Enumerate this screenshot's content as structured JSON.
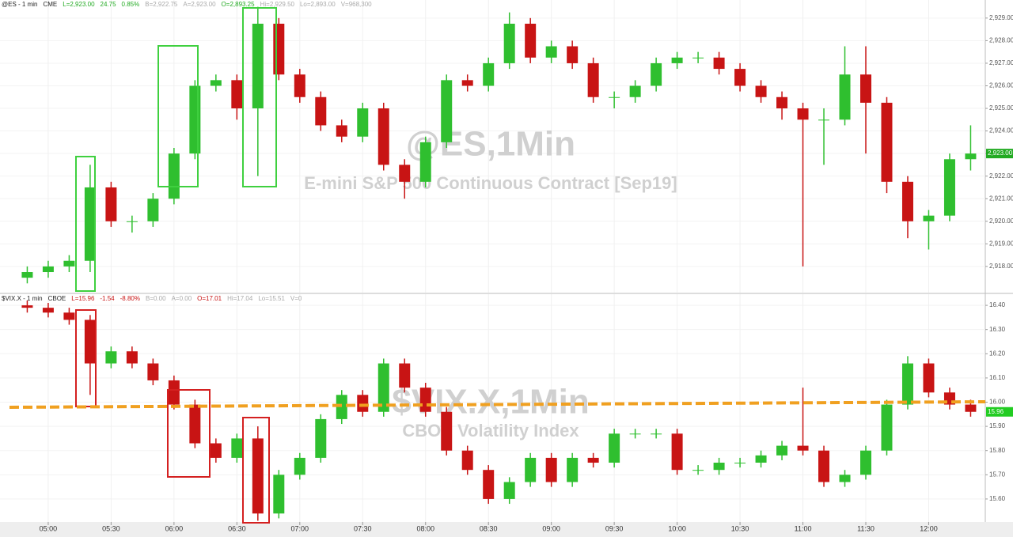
{
  "chart_data": [
    {
      "type": "candlestick",
      "header": [
        {
          "text": "@ES - 1 min",
          "color": "#222222"
        },
        {
          "text": "CME",
          "color": "#222222"
        },
        {
          "text": "L=2,923.00",
          "color": "#22aa22"
        },
        {
          "text": "24.75",
          "color": "#22aa22"
        },
        {
          "text": "0.85%",
          "color": "#22aa22"
        },
        {
          "text": "B=2,922.75",
          "color": "#aaaaaa"
        },
        {
          "text": "A=2,923.00",
          "color": "#aaaaaa"
        },
        {
          "text": "O=2,893.25",
          "color": "#22aa22"
        },
        {
          "text": "Hi=2,929.50",
          "color": "#aaaaaa"
        },
        {
          "text": "Lo=2,893.00",
          "color": "#aaaaaa"
        },
        {
          "text": "V=968,300",
          "color": "#aaaaaa"
        }
      ],
      "title": "@ES,1Min",
      "subtitle": "E-mini S&P 500 Continuous Contract [Sep19]",
      "up_color": "#2fbf2f",
      "down_color": "#c81414",
      "grid": true,
      "xlim": [
        "04:37",
        "12:27"
      ],
      "ylim": [
        2916.84,
        2929.8
      ],
      "yticks": [
        {
          "value": 2918,
          "label": "2,918.00"
        },
        {
          "value": 2919,
          "label": "2,919.00"
        },
        {
          "value": 2920,
          "label": "2,920.00"
        },
        {
          "value": 2921,
          "label": "2,921.00"
        },
        {
          "value": 2922,
          "label": "2,922.00"
        },
        {
          "value": 2923,
          "label": "2,923.00"
        },
        {
          "value": 2924,
          "label": "2,924.00"
        },
        {
          "value": 2925,
          "label": "2,925.00"
        },
        {
          "value": 2926,
          "label": "2,926.00"
        },
        {
          "value": 2927,
          "label": "2,927.00"
        },
        {
          "value": 2928,
          "label": "2,928.00"
        },
        {
          "value": 2929,
          "label": "2,929.00"
        }
      ],
      "last_price": {
        "value": 2923,
        "label": "2,923.00"
      },
      "x": [
        "04:50",
        "05:00",
        "05:10",
        "05:20",
        "05:30",
        "05:40",
        "05:50",
        "06:00",
        "06:10",
        "06:20",
        "06:30",
        "06:40",
        "06:50",
        "07:00",
        "07:10",
        "07:20",
        "07:30",
        "07:40",
        "07:50",
        "08:00",
        "08:10",
        "08:20",
        "08:30",
        "08:40",
        "08:50",
        "09:00",
        "09:10",
        "09:20",
        "09:30",
        "09:40",
        "09:50",
        "10:00",
        "10:10",
        "10:20",
        "10:30",
        "10:40",
        "10:50",
        "11:00",
        "11:10",
        "11:20",
        "11:30",
        "11:40",
        "11:50",
        "12:00",
        "12:10",
        "12:20"
      ],
      "open": [
        2917.5,
        2917.75,
        2918,
        2918.25,
        2921.5,
        2920,
        2920,
        2921,
        2923,
        2926,
        2926.25,
        2925,
        2928.75,
        2926.5,
        2925.5,
        2924.25,
        2923.75,
        2925,
        2922.5,
        2921.75,
        2923.5,
        2926.25,
        2926,
        2927,
        2928.75,
        2927.25,
        2927.75,
        2927,
        2925.5,
        2925.5,
        2926,
        2927,
        2927.25,
        2927.25,
        2926.75,
        2926,
        2925.5,
        2925,
        2924.5,
        2924.5,
        2926.5,
        2925.25,
        2921.75,
        2920,
        2920.25,
        2922.75
      ],
      "high": [
        2918,
        2918.25,
        2918.5,
        2922.5,
        2921.75,
        2920.25,
        2921.25,
        2923.25,
        2926.25,
        2926.5,
        2926.5,
        2929.5,
        2929,
        2926.75,
        2925.75,
        2924.5,
        2925.25,
        2925.25,
        2922.75,
        2923.75,
        2926.5,
        2926.5,
        2927.25,
        2929.25,
        2929,
        2928,
        2928,
        2927.25,
        2925.75,
        2926.25,
        2927.25,
        2927.5,
        2927.5,
        2927.5,
        2927,
        2926.25,
        2925.75,
        2925.25,
        2925,
        2927.75,
        2927.75,
        2925.5,
        2922,
        2920.5,
        2923,
        2924.25
      ],
      "low": [
        2917.25,
        2917.5,
        2917.75,
        2917.75,
        2919.75,
        2919.5,
        2919.75,
        2920.75,
        2922.75,
        2925.75,
        2924.5,
        2922,
        2926.25,
        2925.25,
        2924,
        2923.5,
        2923.5,
        2922.25,
        2921,
        2921.5,
        2923.25,
        2925.75,
        2925.75,
        2926.75,
        2927,
        2927,
        2926.75,
        2925.25,
        2925,
        2925.25,
        2925.75,
        2926.75,
        2927,
        2926.5,
        2925.75,
        2925.25,
        2924.5,
        2918,
        2922.5,
        2924.25,
        2923,
        2921.25,
        2919.25,
        2918.75,
        2920,
        2922.25
      ],
      "close": [
        2917.75,
        2918,
        2918.25,
        2921.5,
        2920,
        2920,
        2921,
        2923,
        2926,
        2926.25,
        2925,
        2928.75,
        2926.5,
        2925.5,
        2924.25,
        2923.75,
        2925,
        2922.5,
        2921.75,
        2923.5,
        2926.25,
        2926,
        2927,
        2928.75,
        2927.25,
        2927.75,
        2927,
        2925.5,
        2925.5,
        2926,
        2927,
        2927.25,
        2927.25,
        2926.75,
        2926,
        2925.5,
        2925,
        2924.5,
        2924.5,
        2926.5,
        2925.25,
        2921.75,
        2920,
        2920.25,
        2922.75,
        2923
      ]
    },
    {
      "type": "candlestick",
      "header": [
        {
          "text": "$VIX.X - 1 min",
          "color": "#222222"
        },
        {
          "text": "CBOE",
          "color": "#222222"
        },
        {
          "text": "L=15.96",
          "color": "#c81414"
        },
        {
          "text": "-1.54",
          "color": "#c81414"
        },
        {
          "text": "-8.80%",
          "color": "#c81414"
        },
        {
          "text": "B=0.00",
          "color": "#aaaaaa"
        },
        {
          "text": "A=0.00",
          "color": "#aaaaaa"
        },
        {
          "text": "O=17.01",
          "color": "#c81414"
        },
        {
          "text": "Hi=17.04",
          "color": "#aaaaaa"
        },
        {
          "text": "Lo=15.51",
          "color": "#aaaaaa"
        },
        {
          "text": "V=0",
          "color": "#aaaaaa"
        }
      ],
      "title": "$VIX.X,1Min",
      "subtitle": "CBOE Volatility Index",
      "up_color": "#2fbf2f",
      "down_color": "#c81414",
      "grid": true,
      "xlim": [
        "04:37",
        "12:27"
      ],
      "xticks": [
        "05:00",
        "05:30",
        "06:00",
        "06:30",
        "07:00",
        "07:30",
        "08:00",
        "08:30",
        "09:00",
        "09:30",
        "10:00",
        "10:30",
        "11:00",
        "11:30",
        "12:00"
      ],
      "ylim": [
        15.505,
        16.446
      ],
      "yticks": [
        {
          "value": 15.6,
          "label": "15.60"
        },
        {
          "value": 15.7,
          "label": "15.70"
        },
        {
          "value": 15.8,
          "label": "15.80"
        },
        {
          "value": 15.9,
          "label": "15.90"
        },
        {
          "value": 16,
          "label": "16.00"
        },
        {
          "value": 16.1,
          "label": "16.10"
        },
        {
          "value": 16.2,
          "label": "16.20"
        },
        {
          "value": 16.3,
          "label": "16.30"
        },
        {
          "value": 16.4,
          "label": "16.40"
        }
      ],
      "last_price": {
        "value": 15.96,
        "label": "15.96"
      },
      "x": [
        "04:50",
        "05:00",
        "05:10",
        "05:20",
        "05:30",
        "05:40",
        "05:50",
        "06:00",
        "06:10",
        "06:20",
        "06:30",
        "06:40",
        "06:50",
        "07:00",
        "07:10",
        "07:20",
        "07:30",
        "07:40",
        "07:50",
        "08:00",
        "08:10",
        "08:20",
        "08:30",
        "08:40",
        "08:50",
        "09:00",
        "09:10",
        "09:20",
        "09:30",
        "09:40",
        "09:50",
        "10:00",
        "10:10",
        "10:20",
        "10:30",
        "10:40",
        "10:50",
        "11:00",
        "11:10",
        "11:20",
        "11:30",
        "11:40",
        "11:50",
        "12:00",
        "12:10",
        "12:20"
      ],
      "open": [
        16.4,
        16.39,
        16.37,
        16.34,
        16.16,
        16.21,
        16.16,
        16.09,
        15.99,
        15.83,
        15.77,
        15.85,
        15.54,
        15.7,
        15.77,
        15.93,
        16.03,
        15.96,
        16.16,
        16.06,
        15.96,
        15.8,
        15.72,
        15.6,
        15.67,
        15.77,
        15.67,
        15.77,
        15.75,
        15.87,
        15.87,
        15.87,
        15.72,
        15.72,
        15.75,
        15.75,
        15.78,
        15.82,
        15.8,
        15.67,
        15.7,
        15.8,
        15.99,
        16.16,
        16.04,
        15.99
      ],
      "high": [
        16.42,
        16.41,
        16.39,
        16.36,
        16.23,
        16.23,
        16.18,
        16.11,
        16.01,
        15.85,
        15.87,
        15.9,
        15.72,
        15.79,
        15.95,
        16.05,
        16.05,
        16.18,
        16.18,
        16.08,
        15.98,
        15.82,
        15.74,
        15.69,
        15.79,
        15.79,
        15.79,
        15.79,
        15.89,
        15.89,
        15.89,
        15.89,
        15.74,
        15.77,
        15.77,
        15.8,
        15.84,
        16.06,
        15.82,
        15.72,
        15.82,
        16.01,
        16.19,
        16.18,
        16.06,
        16.01
      ],
      "low": [
        16.37,
        16.35,
        16.32,
        16.03,
        16.14,
        16.14,
        16.07,
        15.97,
        15.81,
        15.75,
        15.75,
        15.51,
        15.52,
        15.68,
        15.75,
        15.91,
        15.94,
        15.94,
        16.04,
        15.94,
        15.78,
        15.7,
        15.58,
        15.58,
        15.65,
        15.65,
        15.65,
        15.73,
        15.73,
        15.85,
        15.85,
        15.7,
        15.7,
        15.7,
        15.73,
        15.73,
        15.76,
        15.78,
        15.65,
        15.65,
        15.68,
        15.78,
        15.97,
        16.02,
        15.97,
        15.94
      ],
      "close": [
        16.39,
        16.37,
        16.34,
        16.16,
        16.21,
        16.16,
        16.09,
        15.99,
        15.83,
        15.77,
        15.85,
        15.54,
        15.7,
        15.77,
        15.93,
        16.03,
        15.96,
        16.16,
        16.06,
        15.96,
        15.8,
        15.72,
        15.6,
        15.67,
        15.77,
        15.67,
        15.77,
        15.75,
        15.87,
        15.87,
        15.87,
        15.72,
        15.72,
        15.75,
        15.75,
        15.78,
        15.82,
        15.8,
        15.67,
        15.7,
        15.8,
        15.99,
        16.16,
        16.04,
        15.99,
        15.96
      ]
    }
  ]
}
